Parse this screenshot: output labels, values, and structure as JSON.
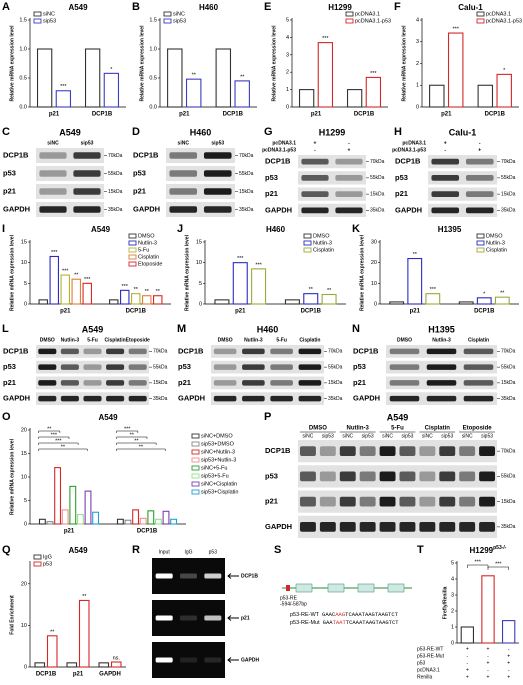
{
  "chart_data": [
    {
      "type": "bar",
      "panel": "A",
      "title": "A549",
      "y_label": "Relative mRNA expression level",
      "categories": [
        "p21",
        "DCP1B"
      ],
      "series": [
        {
          "name": "siNC",
          "color": "#333333",
          "values": [
            1.0,
            1.0
          ]
        },
        {
          "name": "sip53",
          "color": "#3b3bc4",
          "values": [
            0.28,
            0.58
          ],
          "sig": [
            "***",
            "*"
          ]
        }
      ],
      "ylim": [
        0,
        1.5
      ],
      "yticks": [
        {
          "value": 0,
          "label": "0.0"
        },
        {
          "value": 0.5,
          "label": "0.5"
        },
        {
          "value": 1,
          "label": "1.0"
        },
        {
          "value": 1.5,
          "label": "1.5"
        }
      ],
      "legend": "top-left"
    },
    {
      "type": "bar",
      "panel": "B",
      "title": "H460",
      "y_label": "Relative mRNA expression level",
      "categories": [
        "p21",
        "DCP1B"
      ],
      "series": [
        {
          "name": "siNC",
          "color": "#333333",
          "values": [
            1.0,
            1.0
          ]
        },
        {
          "name": "sip53",
          "color": "#3b3bc4",
          "values": [
            0.48,
            0.45
          ],
          "sig": [
            "**",
            "**"
          ]
        }
      ],
      "ylim": [
        0,
        1.5
      ],
      "yticks": [
        {
          "value": 0,
          "label": "0.0"
        },
        {
          "value": 0.5,
          "label": "0.5"
        },
        {
          "value": 1,
          "label": "1.0"
        },
        {
          "value": 1.5,
          "label": "1.5"
        }
      ],
      "legend": "top-left"
    },
    {
      "type": "bar",
      "panel": "E",
      "title": "H1299",
      "y_label": "Relative mRNA expression level",
      "categories": [
        "p21",
        "DCP1B"
      ],
      "series": [
        {
          "name": "pcDNA3.1",
          "color": "#333333",
          "values": [
            1.0,
            1.0
          ]
        },
        {
          "name": "pcDNA3.1-p53",
          "color": "#d62728",
          "values": [
            3.7,
            1.7
          ],
          "sig": [
            "***",
            "***"
          ]
        }
      ],
      "ylim": [
        0,
        5
      ],
      "yticks": [
        0,
        1,
        2,
        3,
        4,
        5
      ],
      "legend": "top-right"
    },
    {
      "type": "bar",
      "panel": "F",
      "title": "Calu-1",
      "y_label": "Relative mRNA expression level",
      "categories": [
        "p21",
        "DCP1B"
      ],
      "series": [
        {
          "name": "pcDNA3.1",
          "color": "#333333",
          "values": [
            1.0,
            1.0
          ]
        },
        {
          "name": "pcDNA3.1-p53",
          "color": "#d62728",
          "values": [
            3.4,
            1.5
          ],
          "sig": [
            "***",
            "*"
          ]
        }
      ],
      "ylim": [
        0,
        4
      ],
      "yticks": [
        0,
        1,
        2,
        3,
        4
      ],
      "legend": "top-right"
    },
    {
      "type": "bar",
      "panel": "I",
      "title": "A549",
      "y_label": "Relative mRNA expression level",
      "categories": [
        "p21",
        "DCP1B"
      ],
      "series": [
        {
          "name": "DMSO",
          "color": "#333333",
          "values": [
            1.0,
            1.0
          ]
        },
        {
          "name": "Nutlin-3",
          "color": "#2b2bc4",
          "values": [
            11.5,
            3.3
          ],
          "sig": [
            "***",
            "***"
          ]
        },
        {
          "name": "5-Fu",
          "color": "#b5b52a",
          "values": [
            7.0,
            2.5
          ],
          "sig": [
            "***",
            "**"
          ]
        },
        {
          "name": "Cisplatin",
          "color": "#e07b39",
          "values": [
            6.0,
            2.0
          ],
          "sig": [
            "**",
            "**"
          ]
        },
        {
          "name": "Etoposide",
          "color": "#d62728",
          "values": [
            5.0,
            2.0
          ],
          "sig": [
            "***",
            "**"
          ]
        }
      ],
      "ylim": [
        0,
        15
      ],
      "yticks": [
        0,
        5,
        10,
        15
      ],
      "legend": "top-right"
    },
    {
      "type": "bar",
      "panel": "J",
      "title": "H460",
      "y_label": "Relative mRNA expression level",
      "categories": [
        "p21",
        "DCP1B"
      ],
      "series": [
        {
          "name": "DMSO",
          "color": "#333333",
          "values": [
            1.0,
            1.0
          ]
        },
        {
          "name": "Nutlin-3",
          "color": "#2b2bc4",
          "values": [
            10.0,
            2.5
          ],
          "sig": [
            "***",
            "**"
          ]
        },
        {
          "name": "Cisplatin",
          "color": "#9aaa3a",
          "values": [
            8.5,
            2.3
          ],
          "sig": [
            "***",
            "**"
          ]
        }
      ],
      "ylim": [
        0,
        15
      ],
      "yticks": [
        0,
        5,
        10,
        15
      ],
      "legend": "top-right"
    },
    {
      "type": "bar",
      "panel": "K",
      "title": "H1395",
      "y_label": "Relative mRNA expression level",
      "categories": [
        "p21",
        "DCP1B"
      ],
      "series": [
        {
          "name": "DMSO",
          "color": "#333333",
          "values": [
            1.0,
            1.0
          ]
        },
        {
          "name": "Nutlin-3",
          "color": "#2b2bc4",
          "values": [
            22.0,
            3.0
          ],
          "sig": [
            "**",
            "*"
          ]
        },
        {
          "name": "Cisplatin",
          "color": "#9aaa3a",
          "values": [
            5.0,
            3.3
          ],
          "sig": [
            "***",
            "**"
          ]
        }
      ],
      "ylim": [
        0,
        30
      ],
      "yticks": [
        0,
        10,
        20,
        30
      ],
      "legend": "top-right"
    },
    {
      "type": "bar",
      "panel": "O",
      "title": "A549",
      "y_label": "Relative mRNA expression level",
      "categories": [
        "p21",
        "DCP1B"
      ],
      "series": [
        {
          "name": "siNC+DMSO",
          "color": "#333333",
          "values": [
            1.0,
            1.0
          ]
        },
        {
          "name": "sip53+DMSO",
          "color": "#888888",
          "values": [
            0.5,
            0.8
          ]
        },
        {
          "name": "siNC+Nutlin-3",
          "color": "#d62728",
          "values": [
            12.0,
            3.0
          ]
        },
        {
          "name": "sip53+Nutlin-3",
          "color": "#f28e8e",
          "values": [
            3.0,
            1.2
          ]
        },
        {
          "name": "siNC+5-Fu",
          "color": "#2ca02c",
          "values": [
            8.0,
            2.8
          ]
        },
        {
          "name": "sip53+5-Fu",
          "color": "#98df8a",
          "values": [
            2.0,
            1.0
          ]
        },
        {
          "name": "siNC+Cisplatin",
          "color": "#7b3fb5",
          "values": [
            7.0,
            2.7
          ]
        },
        {
          "name": "sip53+Cisplatin",
          "color": "#1f9fd6",
          "values": [
            2.5,
            1.0
          ]
        }
      ],
      "ylim": [
        0,
        20
      ],
      "yticks": [
        0,
        5,
        10,
        15,
        20
      ],
      "legend": "right",
      "brackets": [
        [
          "**",
          "***",
          "***",
          "**"
        ],
        [
          "***",
          "**",
          "**",
          "**"
        ]
      ]
    },
    {
      "type": "bar",
      "panel": "Q",
      "title": "A549",
      "y_label": "Fold Enrichment",
      "categories": [
        "DCP1B",
        "p21",
        "GAPDH"
      ],
      "series": [
        {
          "name": "IgG",
          "color": "#333333",
          "values": [
            1.0,
            1.0,
            1.0
          ]
        },
        {
          "name": "p53",
          "color": "#d62728",
          "values": [
            7.5,
            16.0,
            1.2
          ],
          "sig": [
            "**",
            "**",
            "ns."
          ]
        }
      ],
      "ylim": [
        0,
        25
      ],
      "yticks": [
        0,
        10,
        20
      ],
      "legend": "top-left"
    },
    {
      "type": "bar",
      "panel": "T",
      "title": "H1299",
      "title_sup": "p53-/-",
      "y_label": "Firefly/Renilla",
      "categories": [
        null,
        null,
        null
      ],
      "series": [
        {
          "colors": [
            "#333333",
            "#d62728",
            "#3b3bc4"
          ],
          "values": [
            1.0,
            4.2,
            1.4
          ]
        }
      ],
      "ylim": [
        0,
        5
      ],
      "yticks": [
        0,
        1,
        2,
        3,
        4,
        5
      ],
      "annotations": [
        "***",
        "***"
      ],
      "table": {
        "rows": [
          {
            "label": "p53-RE-WT",
            "cells": [
              "+",
              "+",
              "-"
            ]
          },
          {
            "label": "p53-RE-Mut",
            "cells": [
              "-",
              "-",
              "+"
            ]
          },
          {
            "label": "p53",
            "cells": [
              "-",
              "+",
              "+"
            ]
          },
          {
            "label": "pcDNA3.1",
            "cells": [
              "+",
              "-",
              "-"
            ]
          },
          {
            "label": "Renilla",
            "cells": [
              "+",
              "+",
              "+"
            ]
          }
        ]
      }
    }
  ],
  "blots": [
    {
      "panel": "C",
      "title": "A549",
      "lanes": [
        "siNC",
        "sip53"
      ],
      "rows": [
        {
          "protein": "DCP1B",
          "marker": "70kDa"
        },
        {
          "protein": "p53",
          "marker": "55kDa"
        },
        {
          "protein": "p21",
          "marker": "15kDa"
        },
        {
          "protein": "GAPDH",
          "marker": "35kDa"
        }
      ]
    },
    {
      "panel": "D",
      "title": "H460",
      "lanes": [
        "siNC",
        "sip53"
      ],
      "rows": [
        {
          "protein": "DCP1B",
          "marker": "70kDa"
        },
        {
          "protein": "p53",
          "marker": "55kDa"
        },
        {
          "protein": "p21",
          "marker": "15kDa"
        },
        {
          "protein": "GAPDH",
          "marker": "35kDa"
        }
      ]
    },
    {
      "panel": "G",
      "title": "H1299",
      "conditions": [
        {
          "label": "pcDNA3.1",
          "signs": [
            "+",
            "-"
          ]
        },
        {
          "label": "pcDNA3.1-p53",
          "signs": [
            "-",
            "+"
          ]
        }
      ],
      "rows": [
        {
          "protein": "DCP1B",
          "marker": "70kDa"
        },
        {
          "protein": "p53",
          "marker": "55kDa"
        },
        {
          "protein": "p21",
          "marker": "15kDa"
        },
        {
          "protein": "GAPDH",
          "marker": "35kDa"
        }
      ]
    },
    {
      "panel": "H",
      "title": "Calu-1",
      "conditions": [
        {
          "label": "pcDNA3.1",
          "signs": [
            "+",
            "-"
          ]
        },
        {
          "label": "pcDNA3.1-p53",
          "signs": [
            "-",
            "+"
          ]
        }
      ],
      "rows": [
        {
          "protein": "DCP1B",
          "marker": "70kDa"
        },
        {
          "protein": "p53",
          "marker": "55kDa"
        },
        {
          "protein": "p21",
          "marker": "15kDa"
        },
        {
          "protein": "GAPDH",
          "marker": "35kDa"
        }
      ]
    },
    {
      "panel": "L",
      "title": "A549",
      "lanes": [
        "DMSO",
        "Nutlin-3",
        "5-Fu",
        "Cisplatin",
        "Etoposide"
      ],
      "rows": [
        {
          "protein": "DCP1B",
          "marker": "70kDa"
        },
        {
          "protein": "p53",
          "marker": "55kDa"
        },
        {
          "protein": "p21",
          "marker": "15kDa"
        },
        {
          "protein": "GAPDH",
          "marker": "35kDa"
        }
      ]
    },
    {
      "panel": "M",
      "title": "H460",
      "lanes": [
        "DMSO",
        "Nutlin-3",
        "5-Fu",
        "Cisplatin"
      ],
      "rows": [
        {
          "protein": "DCP1B",
          "marker": "70kDa"
        },
        {
          "protein": "p53",
          "marker": "55kDa"
        },
        {
          "protein": "p21",
          "marker": "15kDa"
        },
        {
          "protein": "GAPDH",
          "marker": "35kDa"
        }
      ]
    },
    {
      "panel": "N",
      "title": "H1395",
      "lanes": [
        "DMSO",
        "Nutlin-3",
        "Cisplatin"
      ],
      "rows": [
        {
          "protein": "DCP1B",
          "marker": "70kDa"
        },
        {
          "protein": "p53",
          "marker": "55kDa"
        },
        {
          "protein": "p21",
          "marker": "15kDa"
        },
        {
          "protein": "GAPDH",
          "marker": "35kDa"
        }
      ]
    },
    {
      "panel": "P",
      "title": "A549",
      "groups": [
        {
          "name": "DMSO",
          "lanes": [
            "siNC",
            "sip53"
          ]
        },
        {
          "name": "Nutlin-3",
          "lanes": [
            "siNC",
            "sip53"
          ]
        },
        {
          "name": "5-Fu",
          "lanes": [
            "siNC",
            "sip53"
          ]
        },
        {
          "name": "Cisplatin",
          "lanes": [
            "siNC",
            "sip53"
          ]
        },
        {
          "name": "Etoposide",
          "lanes": [
            "siNC",
            "sip53"
          ]
        }
      ],
      "rows": [
        {
          "protein": "DCP1B",
          "marker": "70kDa"
        },
        {
          "protein": "p53",
          "marker": "55kDa"
        },
        {
          "protein": "p21",
          "marker": "15kDa"
        },
        {
          "protein": "GAPDH",
          "marker": "35kDa"
        }
      ]
    }
  ],
  "gel": {
    "panel": "R",
    "lanes": [
      "Input",
      "IgG",
      "p53"
    ],
    "rows": [
      "DCP1B",
      "p21",
      "GAPDH"
    ]
  },
  "diagram": {
    "panel": "S",
    "re_label": "p53-RE",
    "position": "-594/-587bp",
    "sequences": [
      {
        "name": "p53-RE-WT",
        "parts": [
          "GAAC",
          "AAG",
          "TCAAATAAGTAAGTCT"
        ]
      },
      {
        "name": "p53-RE-Mut",
        "parts": [
          "GAA",
          "TAAT",
          "TCAAATAAGTAAGTCT"
        ]
      }
    ]
  }
}
